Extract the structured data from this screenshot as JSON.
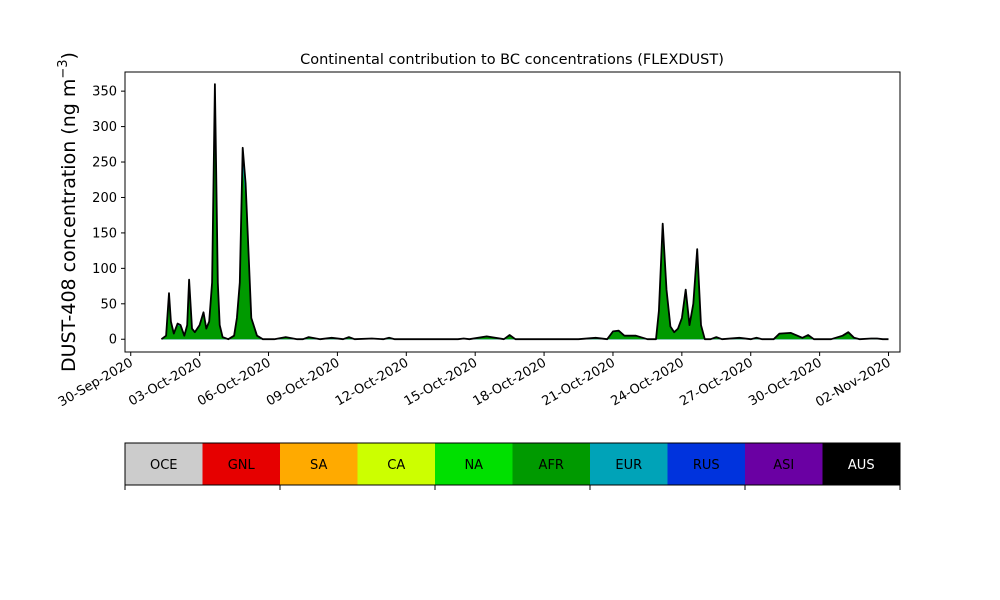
{
  "chart_data": {
    "type": "area",
    "title": "Continental contribution to BC concentrations (FLEXDUST)",
    "ylabel_main": "DUST-408 concentration (ng m",
    "ylabel_sup": "−3",
    "ylabel_close": ")",
    "xlabel": "",
    "x_range": [
      "2020-09-29T18:00",
      "2020-11-02T12:00"
    ],
    "ylim": [
      -18,
      377
    ],
    "y_ticks": [
      0,
      50,
      100,
      150,
      200,
      250,
      300,
      350
    ],
    "x_ticks": [
      "2020-09-30",
      "2020-10-03",
      "2020-10-06",
      "2020-10-09",
      "2020-10-12",
      "2020-10-15",
      "2020-10-18",
      "2020-10-21",
      "2020-10-24",
      "2020-10-27",
      "2020-10-30",
      "2020-11-02"
    ],
    "x_tick_labels": [
      "30-Sep-2020",
      "03-Oct-2020",
      "06-Oct-2020",
      "09-Oct-2020",
      "12-Oct-2020",
      "15-Oct-2020",
      "18-Oct-2020",
      "21-Oct-2020",
      "24-Oct-2020",
      "27-Oct-2020",
      "30-Oct-2020",
      "02-Nov-2020"
    ],
    "grid": false,
    "series_colors": {
      "AFR": "#009a00",
      "EUR": "#00a3b8",
      "RUS": "#0033dd",
      "ASI": "#6a00a3",
      "AUS": "#000000"
    },
    "total": {
      "x": [
        "2020-10-01T08:00",
        "2020-10-01T13:00",
        "2020-10-01T16:00",
        "2020-10-01T18:00",
        "2020-10-01T21:00",
        "2020-10-02T01:00",
        "2020-10-02T04:00",
        "2020-10-02T08:00",
        "2020-10-02T11:00",
        "2020-10-02T13:00",
        "2020-10-02T16:00",
        "2020-10-02T19:00",
        "2020-10-03T00:00",
        "2020-10-03T04:00",
        "2020-10-03T07:00",
        "2020-10-03T10:00",
        "2020-10-03T13:00",
        "2020-10-03T16:00",
        "2020-10-03T19:00",
        "2020-10-03T21:00",
        "2020-10-04T00:00",
        "2020-10-04T06:00",
        "2020-10-04T12:00",
        "2020-10-04T15:00",
        "2020-10-04T18:00",
        "2020-10-04T21:00",
        "2020-10-05T00:00",
        "2020-10-05T06:00",
        "2020-10-05T12:00",
        "2020-10-05T18:00",
        "2020-10-06T06:00",
        "2020-10-06T18:00",
        "2020-10-07T06:00",
        "2020-10-07T12:00",
        "2020-10-07T18:00",
        "2020-10-08T06:00",
        "2020-10-08T18:00",
        "2020-10-09T06:00",
        "2020-10-09T12:00",
        "2020-10-09T18:00",
        "2020-10-10T12:00",
        "2020-10-11T00:00",
        "2020-10-11T06:00",
        "2020-10-11T12:00",
        "2020-10-12T12:00",
        "2020-10-13T12:00",
        "2020-10-14T06:00",
        "2020-10-14T12:00",
        "2020-10-14T18:00",
        "2020-10-15T12:00",
        "2020-10-16T06:00",
        "2020-10-16T12:00",
        "2020-10-16T18:00",
        "2020-10-17T12:00",
        "2020-10-18T12:00",
        "2020-10-19T12:00",
        "2020-10-20T06:00",
        "2020-10-20T18:00",
        "2020-10-21T00:00",
        "2020-10-21T06:00",
        "2020-10-21T12:00",
        "2020-10-22T00:00",
        "2020-10-22T12:00",
        "2020-10-22T21:00",
        "2020-10-23T00:00",
        "2020-10-23T04:00",
        "2020-10-23T08:00",
        "2020-10-23T12:00",
        "2020-10-23T16:00",
        "2020-10-23T20:00",
        "2020-10-24T00:00",
        "2020-10-24T04:00",
        "2020-10-24T08:00",
        "2020-10-24T12:00",
        "2020-10-24T16:00",
        "2020-10-24T20:00",
        "2020-10-25T00:00",
        "2020-10-25T06:00",
        "2020-10-25T12:00",
        "2020-10-25T18:00",
        "2020-10-26T12:00",
        "2020-10-27T00:00",
        "2020-10-27T06:00",
        "2020-10-27T12:00",
        "2020-10-28T00:00",
        "2020-10-28T06:00",
        "2020-10-28T18:00",
        "2020-10-29T06:00",
        "2020-10-29T12:00",
        "2020-10-29T18:00",
        "2020-10-30T12:00",
        "2020-10-31T00:00",
        "2020-10-31T06:00",
        "2020-10-31T12:00",
        "2020-10-31T18:00",
        "2020-11-01T06:00",
        "2020-11-01T12:00",
        "2020-11-01T18:00",
        "2020-11-02T00:00"
      ],
      "y": [
        0,
        5,
        65,
        25,
        8,
        22,
        20,
        5,
        20,
        84,
        15,
        10,
        20,
        38,
        15,
        25,
        80,
        360,
        80,
        20,
        3,
        0,
        5,
        30,
        80,
        270,
        220,
        30,
        5,
        0,
        0,
        3,
        0,
        0,
        3,
        0,
        2,
        0,
        3,
        0,
        1,
        0,
        2,
        0,
        0,
        0,
        0,
        1,
        0,
        4,
        0,
        6,
        0,
        0,
        0,
        0,
        2,
        0,
        11,
        12,
        5,
        5,
        0,
        0,
        40,
        163,
        70,
        18,
        10,
        15,
        30,
        70,
        20,
        50,
        127,
        20,
        0,
        0,
        3,
        0,
        2,
        0,
        2,
        0,
        0,
        8,
        9,
        2,
        6,
        0,
        0,
        5,
        10,
        2,
        0,
        1,
        1,
        0,
        0
      ]
    }
  },
  "legend": [
    {
      "label": "OCE",
      "color": "#cccccc",
      "text_color": "#000000"
    },
    {
      "label": "GNL",
      "color": "#e60000",
      "text_color": "#000000"
    },
    {
      "label": "SA",
      "color": "#ffaa00",
      "text_color": "#000000"
    },
    {
      "label": "CA",
      "color": "#ccff00",
      "text_color": "#000000"
    },
    {
      "label": "NA",
      "color": "#00e000",
      "text_color": "#000000"
    },
    {
      "label": "AFR",
      "color": "#009a00",
      "text_color": "#000000"
    },
    {
      "label": "EUR",
      "color": "#00a3b8",
      "text_color": "#000000"
    },
    {
      "label": "RUS",
      "color": "#0033dd",
      "text_color": "#000000"
    },
    {
      "label": "ASI",
      "color": "#6a00a3",
      "text_color": "#000000"
    },
    {
      "label": "AUS",
      "color": "#000000",
      "text_color": "#ffffff"
    }
  ]
}
